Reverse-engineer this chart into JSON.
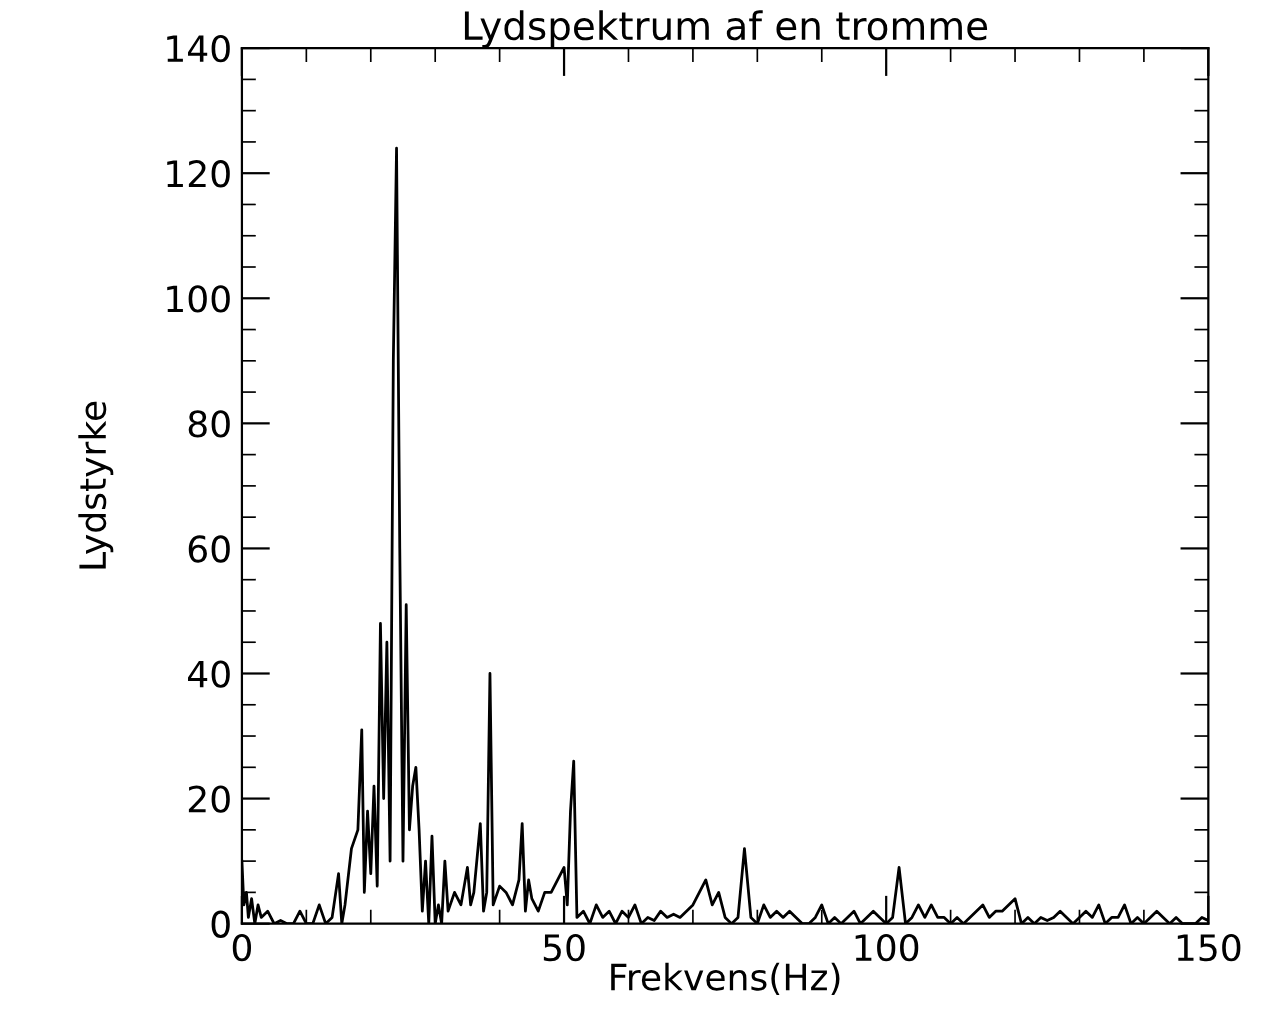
{
  "chart_data": {
    "type": "line",
    "title": "Lydspektrum af en tromme",
    "xlabel": "Frekvens(Hz)",
    "ylabel": "Lydstyrke",
    "xlim": [
      0,
      150
    ],
    "xticks": [
      0,
      50,
      100,
      150
    ],
    "ylim": [
      0,
      140
    ],
    "yticks": [
      0,
      20,
      40,
      60,
      80,
      100,
      120,
      140
    ],
    "grid": false,
    "marker": "none",
    "line_style": "solid",
    "series": [
      {
        "color": "#000000",
        "x": [
          0,
          0.3,
          0.7,
          1,
          1.5,
          2,
          2.5,
          3,
          4,
          5,
          6,
          7,
          8,
          9,
          10,
          11,
          12,
          13,
          14,
          15,
          15.5,
          16,
          17,
          18,
          18.6,
          19,
          19.5,
          20,
          20.5,
          21,
          21.5,
          22,
          22.5,
          23,
          23.5,
          24,
          24.5,
          25,
          25.5,
          26,
          26.5,
          27,
          27.5,
          28,
          28.5,
          29,
          29.5,
          30,
          30.5,
          31,
          31.5,
          32,
          33,
          34,
          35,
          35.5,
          36,
          37,
          37.5,
          38,
          38.5,
          39,
          40,
          41,
          42,
          43,
          43.5,
          44,
          44.5,
          45,
          46,
          47,
          48,
          49,
          50,
          50.5,
          51,
          51.5,
          52,
          53,
          54,
          55,
          56,
          57,
          58,
          59,
          60,
          61,
          62,
          63,
          64,
          65,
          66,
          67,
          68,
          69,
          70,
          71,
          72,
          73,
          74,
          75,
          76,
          77,
          78,
          79,
          80,
          81,
          82,
          83,
          84,
          85,
          86,
          87,
          88,
          89,
          90,
          91,
          92,
          93,
          94,
          95,
          96,
          97,
          98,
          99,
          100,
          101,
          102,
          103,
          104,
          105,
          106,
          107,
          108,
          109,
          110,
          111,
          112,
          113,
          114,
          115,
          116,
          117,
          118,
          119,
          120,
          121,
          122,
          123,
          124,
          125,
          126,
          127,
          128,
          129,
          130,
          131,
          132,
          133,
          134,
          135,
          136,
          137,
          138,
          139,
          140,
          141,
          142,
          143,
          144,
          145,
          146,
          147,
          148,
          149,
          150
        ],
        "values": [
          10,
          3,
          5,
          1,
          4,
          0,
          3,
          1,
          2,
          0,
          0.5,
          0,
          0,
          2,
          0,
          0,
          3,
          0,
          1,
          8,
          0,
          3,
          12,
          15,
          31,
          5,
          18,
          8,
          22,
          6,
          48,
          20,
          45,
          10,
          90,
          124,
          60,
          10,
          51,
          15,
          22,
          25,
          15,
          2,
          10,
          0,
          14,
          0,
          3,
          0,
          10,
          2,
          5,
          3,
          9,
          3,
          5,
          16,
          2,
          5,
          40,
          3,
          6,
          5,
          3,
          7,
          16,
          2,
          7,
          4,
          2,
          5,
          5,
          7,
          9,
          3,
          18,
          26,
          1,
          2,
          0,
          3,
          1,
          2,
          0,
          2,
          1,
          3,
          0,
          1,
          0.5,
          2,
          1,
          1.5,
          1,
          2,
          3,
          5,
          7,
          3,
          5,
          1,
          0,
          1,
          12,
          1,
          0,
          3,
          1,
          2,
          1,
          2,
          1,
          0,
          0,
          1,
          3,
          0,
          1,
          0,
          1,
          2,
          0,
          1,
          2,
          1,
          0,
          1,
          9,
          0,
          1,
          3,
          1,
          3,
          1,
          1,
          0,
          1,
          0,
          1,
          2,
          3,
          1,
          2,
          2,
          3,
          4,
          0,
          1,
          0,
          1,
          0.5,
          1,
          2,
          1,
          0,
          1,
          2,
          1,
          3,
          0,
          1,
          1,
          3,
          0,
          1,
          0,
          1,
          2,
          1,
          0,
          1,
          0,
          0,
          0,
          1,
          0.5
        ]
      }
    ]
  }
}
